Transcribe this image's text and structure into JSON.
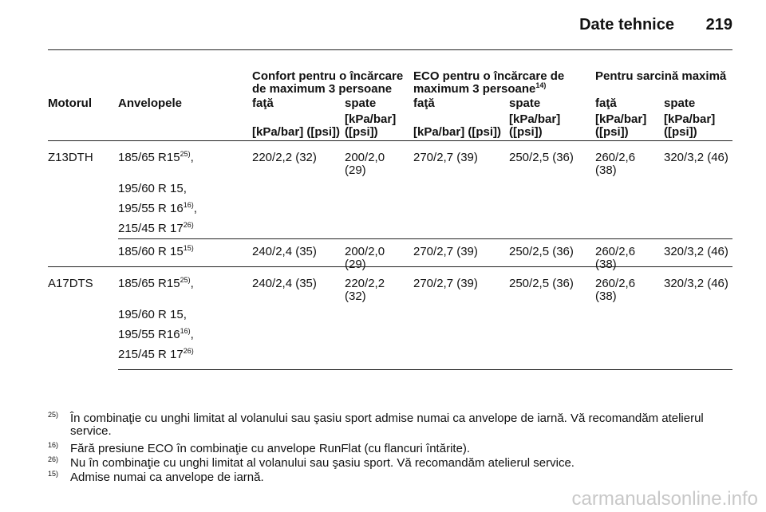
{
  "header": {
    "title": "Date tehnice",
    "page": "219"
  },
  "table": {
    "group_headers": [
      {
        "text": "Confort pentru o încărcare de maximum 3 persoane"
      },
      {
        "text": "ECO pentru o încărcare de maximum 3 persoane",
        "sup": "14)"
      },
      {
        "text": "Pentru sarcină maximă"
      }
    ],
    "columns": [
      "Motorul",
      "Anvelopele",
      "faţă",
      "spate",
      "faţă",
      "spate",
      "faţă",
      "spate"
    ],
    "units": [
      "[kPa/bar] ([psi])",
      "[kPa/bar] ([psi])",
      "[kPa/bar] ([psi])",
      "[kPa/bar] ([psi])",
      "[kPa/bar] ([psi])",
      "[kPa/bar] ([psi])"
    ],
    "rows": [
      {
        "engine": "Z13DTH",
        "tires": [
          {
            "text": "185/65 R15",
            "sup": "25)",
            "suffix": ","
          },
          {
            "text": "195/60 R 15,"
          },
          {
            "text": "195/55 R 16",
            "sup": "16)",
            "suffix": ","
          },
          {
            "text": "215/45 R 17",
            "sup": "26)"
          }
        ],
        "values": [
          "220/2,2 (32)",
          "200/2,0 (29)",
          "270/2,7 (39)",
          "250/2,5 (36)",
          "260/2,6 (38)",
          "320/3,2 (46)"
        ]
      },
      {
        "tires": [
          {
            "text": "185/60 R 15",
            "sup": "15)"
          }
        ],
        "values": [
          "240/2,4 (35)",
          "200/2,0 (29)",
          "270/2,7 (39)",
          "250/2,5 (36)",
          "260/2,6 (38)",
          "320/3,2 (46)"
        ]
      },
      {
        "engine": "A17DTS",
        "tires": [
          {
            "text": "185/65 R15",
            "sup": "25)",
            "suffix": ","
          },
          {
            "text": "195/60 R 15,"
          },
          {
            "text": "195/55 R16",
            "sup": "16)",
            "suffix": ","
          },
          {
            "text": "215/45 R 17",
            "sup": "26)"
          }
        ],
        "values": [
          "240/2,4 (35)",
          "220/2,2 (32)",
          "270/2,7 (39)",
          "250/2,5 (36)",
          "260/2,6 (38)",
          "320/3,2 (46)"
        ]
      }
    ]
  },
  "footnotes": [
    {
      "mark": "25)",
      "text": "În combinaţie cu unghi limitat al volanului sau şasiu sport admise numai ca anvelope de iarnă. Vă recomandăm atelierul service."
    },
    {
      "mark": "16)",
      "text": "Fără presiune ECO în combinaţie cu anvelope RunFlat (cu flancuri întărite)."
    },
    {
      "mark": "26)",
      "text": "Nu în combinaţie cu unghi limitat al volanului sau şasiu sport. Vă recomandăm atelierul service."
    },
    {
      "mark": "15)",
      "text": "Admise numai ca anvelope de iarnă."
    }
  ],
  "watermark": "carmanualsonline.info"
}
